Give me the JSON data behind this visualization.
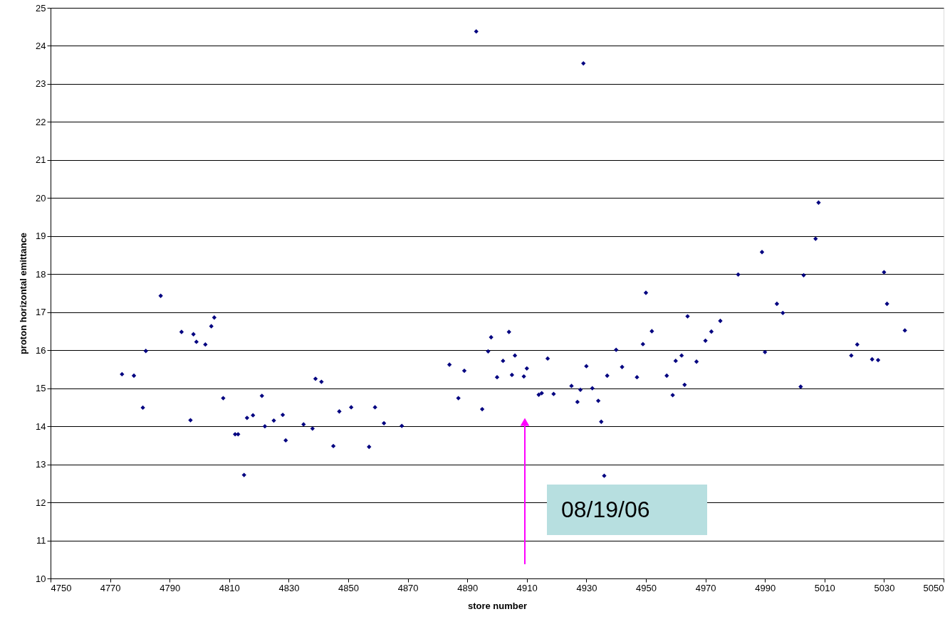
{
  "chart_data": {
    "type": "scatter",
    "xlabel": "store number",
    "ylabel": "proton horizontal emittance",
    "x": [
      4774,
      4778,
      4781,
      4782,
      4787,
      4794,
      4797,
      4798,
      4799,
      4802,
      4804,
      4805,
      4808,
      4812,
      4813,
      4815,
      4816,
      4818,
      4821,
      4822,
      4825,
      4828,
      4829,
      4835,
      4838,
      4839,
      4841,
      4845,
      4847,
      4851,
      4857,
      4859,
      4862,
      4868,
      4884,
      4887,
      4889,
      4893,
      4895,
      4897,
      4898,
      4900,
      4902,
      4904,
      4905,
      4906,
      4909,
      4910,
      4914,
      4915,
      4917,
      4919,
      4925,
      4927,
      4928,
      4929,
      4930,
      4932,
      4934,
      4935,
      4936,
      4937,
      4940,
      4942,
      4947,
      4949,
      4950,
      4952,
      4957,
      4959,
      4960,
      4962,
      4963,
      4964,
      4967,
      4970,
      4972,
      4975,
      4981,
      4989,
      4990,
      4994,
      4996,
      5002,
      5003,
      5007,
      5008,
      5019,
      5021,
      5026,
      5028,
      5030,
      5031,
      5037
    ],
    "series": [
      {
        "color": "#000080",
        "values": [
          15.37,
          15.33,
          14.49,
          15.98,
          17.43,
          16.48,
          14.16,
          16.42,
          16.22,
          16.15,
          16.63,
          16.86,
          14.74,
          13.79,
          13.79,
          12.72,
          14.22,
          14.29,
          14.8,
          14.0,
          14.15,
          14.3,
          13.63,
          14.05,
          13.94,
          15.25,
          15.17,
          13.48,
          14.39,
          14.5,
          13.46,
          14.5,
          14.08,
          14.01,
          15.62,
          14.74,
          15.46,
          24.38,
          14.45,
          15.97,
          16.34,
          15.29,
          15.72,
          16.48,
          15.35,
          15.86,
          15.31,
          15.52,
          14.83,
          14.87,
          15.78,
          14.85,
          15.06,
          14.64,
          14.96,
          23.54,
          15.58,
          15.0,
          14.67,
          14.12,
          12.7,
          15.33,
          16.01,
          15.56,
          15.29,
          16.16,
          17.51,
          16.5,
          15.33,
          14.82,
          15.72,
          15.86,
          15.09,
          16.89,
          15.7,
          16.25,
          16.49,
          16.77,
          17.99,
          18.58,
          15.95,
          17.22,
          16.98,
          15.04,
          17.97,
          18.93,
          19.88,
          15.86,
          16.15,
          15.76,
          15.74,
          18.05,
          17.22,
          16.52
        ]
      }
    ],
    "xlim": [
      4750,
      5050
    ],
    "xticks": [
      4750,
      4770,
      4790,
      4810,
      4830,
      4850,
      4870,
      4890,
      4910,
      4930,
      4950,
      4970,
      4990,
      5010,
      5030,
      5050
    ],
    "ylim": [
      10,
      25
    ],
    "yticks": [
      10,
      11,
      12,
      13,
      14,
      15,
      16,
      17,
      18,
      19,
      20,
      21,
      22,
      23,
      24,
      25
    ],
    "grid": "y",
    "marker": "diamond",
    "annotations": [
      "08/19/06"
    ]
  }
}
